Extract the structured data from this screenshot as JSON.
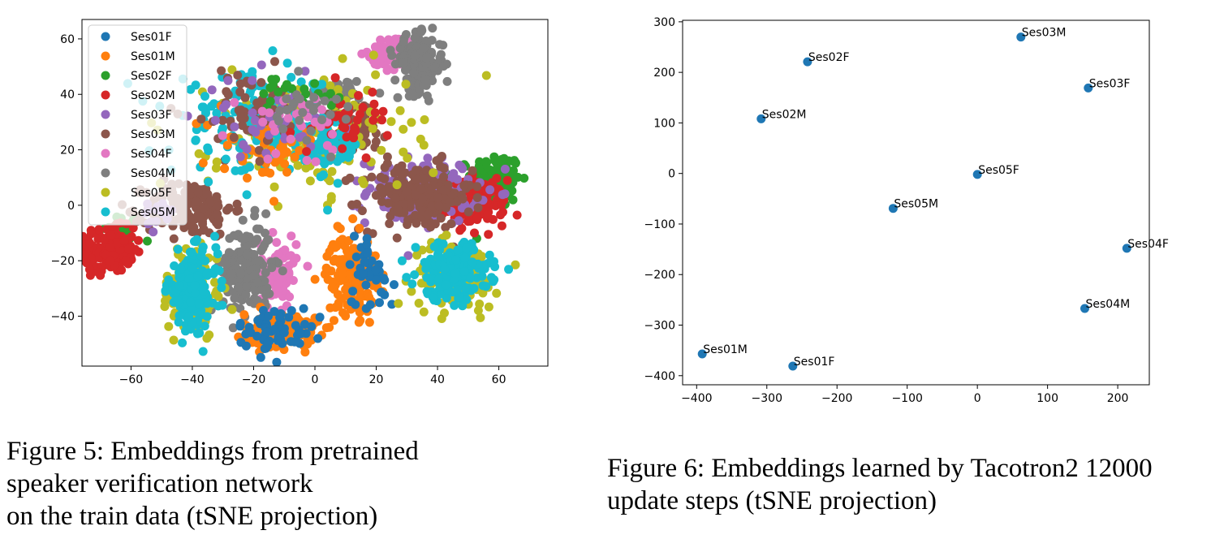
{
  "chart_data": [
    {
      "type": "scatter",
      "title": "",
      "xlabel": "",
      "ylabel": "",
      "xlim": [
        -76,
        76
      ],
      "ylim": [
        -58,
        67
      ],
      "xticks": [
        -60,
        -40,
        -20,
        0,
        20,
        40,
        60
      ],
      "yticks": [
        60,
        40,
        20,
        0,
        -20,
        -40
      ],
      "xtick_labels": [
        "−60",
        "−40",
        "−20",
        "0",
        "20",
        "40",
        "60"
      ],
      "ytick_labels": [
        "60",
        "40",
        "20",
        "0",
        "−20",
        "−40"
      ],
      "legend_position": "upper-left",
      "legend": [
        "Ses01F",
        "Ses01M",
        "Ses02F",
        "Ses02M",
        "Ses03F",
        "Ses03M",
        "Ses04F",
        "Ses04M",
        "Ses05F",
        "Ses05M"
      ],
      "colors": [
        "#1f77b4",
        "#ff7f0e",
        "#2ca02c",
        "#d62728",
        "#9467bd",
        "#8c564b",
        "#e377c2",
        "#7f7f7f",
        "#bcbd22",
        "#17becf"
      ],
      "clusters": [
        {
          "series": "Ses02F",
          "cx": -63,
          "cy": -10,
          "sx": 3,
          "sy": 4,
          "n": 40
        },
        {
          "series": "Ses02F",
          "cx": 59,
          "cy": 9,
          "sx": 4,
          "sy": 5,
          "n": 160
        },
        {
          "series": "Ses02M",
          "cx": -67,
          "cy": -16,
          "sx": 4,
          "sy": 4,
          "n": 170
        },
        {
          "series": "Ses02M",
          "cx": 52,
          "cy": 1,
          "sx": 5,
          "sy": 4,
          "n": 170
        },
        {
          "series": "Ses03F",
          "cx": 35,
          "cy": 5,
          "sx": 9,
          "sy": 6,
          "n": 130
        },
        {
          "series": "Ses03M",
          "cx": 33,
          "cy": 3,
          "sx": 9,
          "sy": 6,
          "n": 200
        },
        {
          "series": "Ses03M",
          "cx": -41,
          "cy": -1,
          "sx": 7,
          "sy": 5,
          "n": 160
        },
        {
          "series": "Ses03M",
          "cx": 13,
          "cy": 29,
          "sx": 6,
          "sy": 5,
          "n": 60
        },
        {
          "series": "Ses04F",
          "cx": 26,
          "cy": 55,
          "sx": 4,
          "sy": 3,
          "n": 80
        },
        {
          "series": "Ses04F",
          "cx": -12,
          "cy": -25,
          "sx": 3,
          "sy": 7,
          "n": 90
        },
        {
          "series": "Ses04M",
          "cx": 34,
          "cy": 51,
          "sx": 4,
          "sy": 5,
          "n": 160
        },
        {
          "series": "Ses04M",
          "cx": -22,
          "cy": -23,
          "sx": 4,
          "sy": 8,
          "n": 180
        },
        {
          "series": "Ses04M",
          "cx": 7,
          "cy": 41,
          "sx": 4,
          "sy": 2,
          "n": 30
        },
        {
          "series": "Ses01M",
          "cx": 12,
          "cy": -25,
          "sx": 4,
          "sy": 7,
          "n": 170
        },
        {
          "series": "Ses01M",
          "cx": -11,
          "cy": -45,
          "sx": 6,
          "sy": 3,
          "n": 170
        },
        {
          "series": "Ses01F",
          "cx": -13,
          "cy": -45,
          "sx": 6,
          "sy": 4,
          "n": 60
        },
        {
          "series": "Ses01F",
          "cx": 18,
          "cy": -24,
          "sx": 4,
          "sy": 7,
          "n": 40
        },
        {
          "series": "Ses05F",
          "cx": 46,
          "cy": -25,
          "sx": 7,
          "sy": 6,
          "n": 120
        },
        {
          "series": "Ses05F",
          "cx": -40,
          "cy": -30,
          "sx": 5,
          "sy": 9,
          "n": 100
        },
        {
          "series": "Ses05F",
          "cx": -2,
          "cy": 25,
          "sx": 16,
          "sy": 10,
          "n": 180
        },
        {
          "series": "Ses05M",
          "cx": 45,
          "cy": -24,
          "sx": 6,
          "sy": 5,
          "n": 200
        },
        {
          "series": "Ses05M",
          "cx": -40,
          "cy": -31,
          "sx": 4,
          "sy": 7,
          "n": 180
        },
        {
          "series": "Ses05M",
          "cx": -19,
          "cy": 29,
          "sx": 14,
          "sy": 9,
          "n": 160
        },
        {
          "series": "Ses05M",
          "cx": 6,
          "cy": 21,
          "sx": 4,
          "sy": 5,
          "n": 60
        },
        {
          "series": "Ses01M",
          "cx": -15,
          "cy": 22,
          "sx": 8,
          "sy": 6,
          "n": 50
        },
        {
          "series": "Ses03M",
          "cx": -22,
          "cy": 34,
          "sx": 10,
          "sy": 7,
          "n": 60
        },
        {
          "series": "Ses03F",
          "cx": -15,
          "cy": 31,
          "sx": 10,
          "sy": 7,
          "n": 40
        },
        {
          "series": "Ses02M",
          "cx": 12,
          "cy": 31,
          "sx": 6,
          "sy": 5,
          "n": 40
        },
        {
          "series": "Ses02F",
          "cx": -6,
          "cy": 40,
          "sx": 6,
          "sy": 3,
          "n": 20
        },
        {
          "series": "Ses04F",
          "cx": -8,
          "cy": 30,
          "sx": 8,
          "sy": 6,
          "n": 30
        },
        {
          "series": "Ses04M",
          "cx": -3,
          "cy": 35,
          "sx": 8,
          "sy": 5,
          "n": 25
        },
        {
          "series": "Ses03F",
          "cx": -52,
          "cy": -5,
          "sx": 3,
          "sy": 4,
          "n": 15
        }
      ]
    },
    {
      "type": "scatter",
      "title": "",
      "xlabel": "",
      "ylabel": "",
      "xlim": [
        -420,
        245
      ],
      "ylim": [
        -418,
        303
      ],
      "xticks": [
        -400,
        -300,
        -200,
        -100,
        0,
        100,
        200
      ],
      "yticks": [
        300,
        200,
        100,
        0,
        -100,
        -200,
        -300,
        -400
      ],
      "xtick_labels": [
        "−400",
        "−300",
        "−200",
        "−100",
        "0",
        "100",
        "200"
      ],
      "ytick_labels": [
        "300",
        "200",
        "100",
        "0",
        "−100",
        "−200",
        "−300",
        "−400"
      ],
      "color": "#1f77b4",
      "points": [
        {
          "label": "Ses03M",
          "x": 62,
          "y": 270
        },
        {
          "label": "Ses02F",
          "x": -242,
          "y": 221
        },
        {
          "label": "Ses03F",
          "x": 158,
          "y": 169
        },
        {
          "label": "Ses02M",
          "x": -308,
          "y": 108
        },
        {
          "label": "Ses05F",
          "x": 0,
          "y": -2
        },
        {
          "label": "Ses05M",
          "x": -120,
          "y": -69
        },
        {
          "label": "Ses04F",
          "x": 213,
          "y": -148
        },
        {
          "label": "Ses04M",
          "x": 153,
          "y": -267
        },
        {
          "label": "Ses01M",
          "x": -392,
          "y": -357
        },
        {
          "label": "Ses01F",
          "x": -263,
          "y": -381
        }
      ]
    }
  ],
  "captions": {
    "fig5": [
      "Figure 5: Embeddings from pretrained",
      "speaker verification network",
      "on the train data (tSNE projection)"
    ],
    "fig6": [
      "Figure 6: Embeddings learned by Tacotron2 12000",
      "update steps (tSNE projection)"
    ]
  }
}
